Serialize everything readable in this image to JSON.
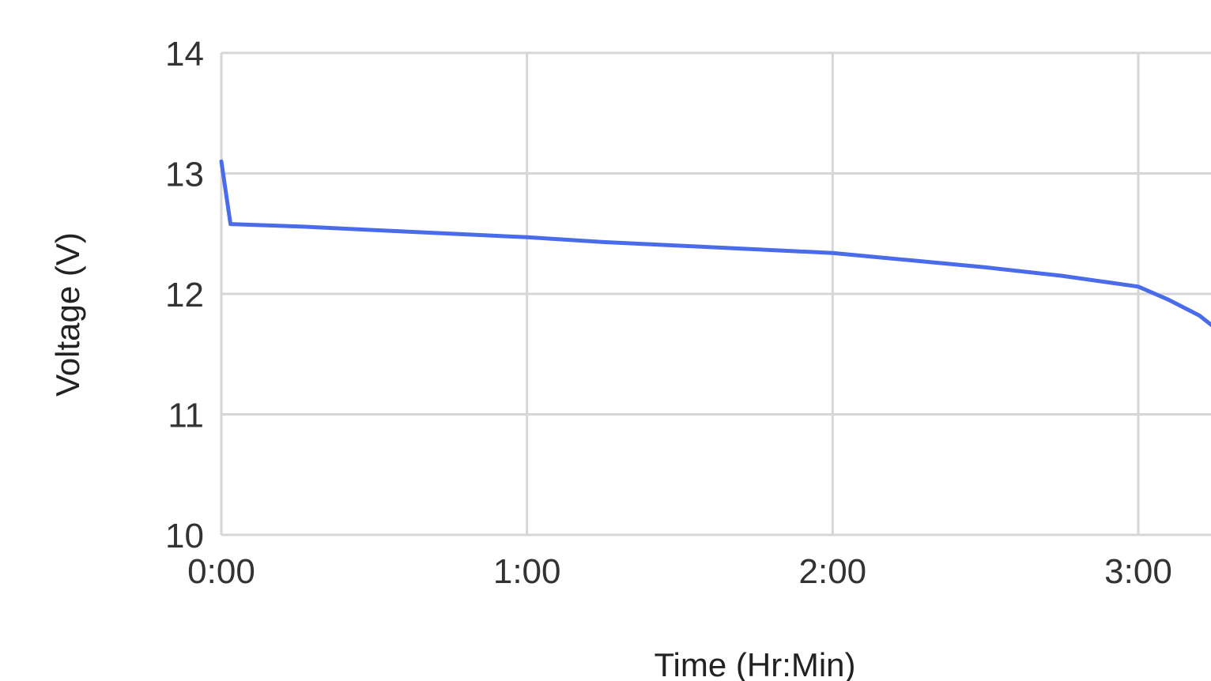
{
  "chart_data": {
    "type": "line",
    "xlabel": "Time (Hr:Min)",
    "ylabel": "Voltage (V)",
    "x_unit": "hours",
    "ylim": [
      10,
      14
    ],
    "xlim": [
      0,
      3.25
    ],
    "x_ticks": [
      {
        "value": 0,
        "label": "0:00"
      },
      {
        "value": 1,
        "label": "1:00"
      },
      {
        "value": 2,
        "label": "2:00"
      },
      {
        "value": 3,
        "label": "3:00"
      }
    ],
    "y_ticks": [
      {
        "value": 14,
        "label": "14"
      },
      {
        "value": 13,
        "label": "13"
      },
      {
        "value": 12,
        "label": "12"
      },
      {
        "value": 11,
        "label": "11"
      },
      {
        "value": 10,
        "label": "10"
      }
    ],
    "grid": true,
    "series": [
      {
        "color": "#4a6bea",
        "points": [
          {
            "x": 0.0,
            "y": 13.1
          },
          {
            "x": 0.03,
            "y": 12.58
          },
          {
            "x": 0.25,
            "y": 12.56
          },
          {
            "x": 0.5,
            "y": 12.53
          },
          {
            "x": 0.75,
            "y": 12.5
          },
          {
            "x": 1.0,
            "y": 12.47
          },
          {
            "x": 1.25,
            "y": 12.43
          },
          {
            "x": 1.5,
            "y": 12.4
          },
          {
            "x": 1.75,
            "y": 12.37
          },
          {
            "x": 2.0,
            "y": 12.34
          },
          {
            "x": 2.25,
            "y": 12.28
          },
          {
            "x": 2.5,
            "y": 12.22
          },
          {
            "x": 2.75,
            "y": 12.15
          },
          {
            "x": 3.0,
            "y": 12.06
          },
          {
            "x": 3.1,
            "y": 11.95
          },
          {
            "x": 3.2,
            "y": 11.82
          },
          {
            "x": 3.25,
            "y": 11.72
          }
        ]
      }
    ]
  }
}
